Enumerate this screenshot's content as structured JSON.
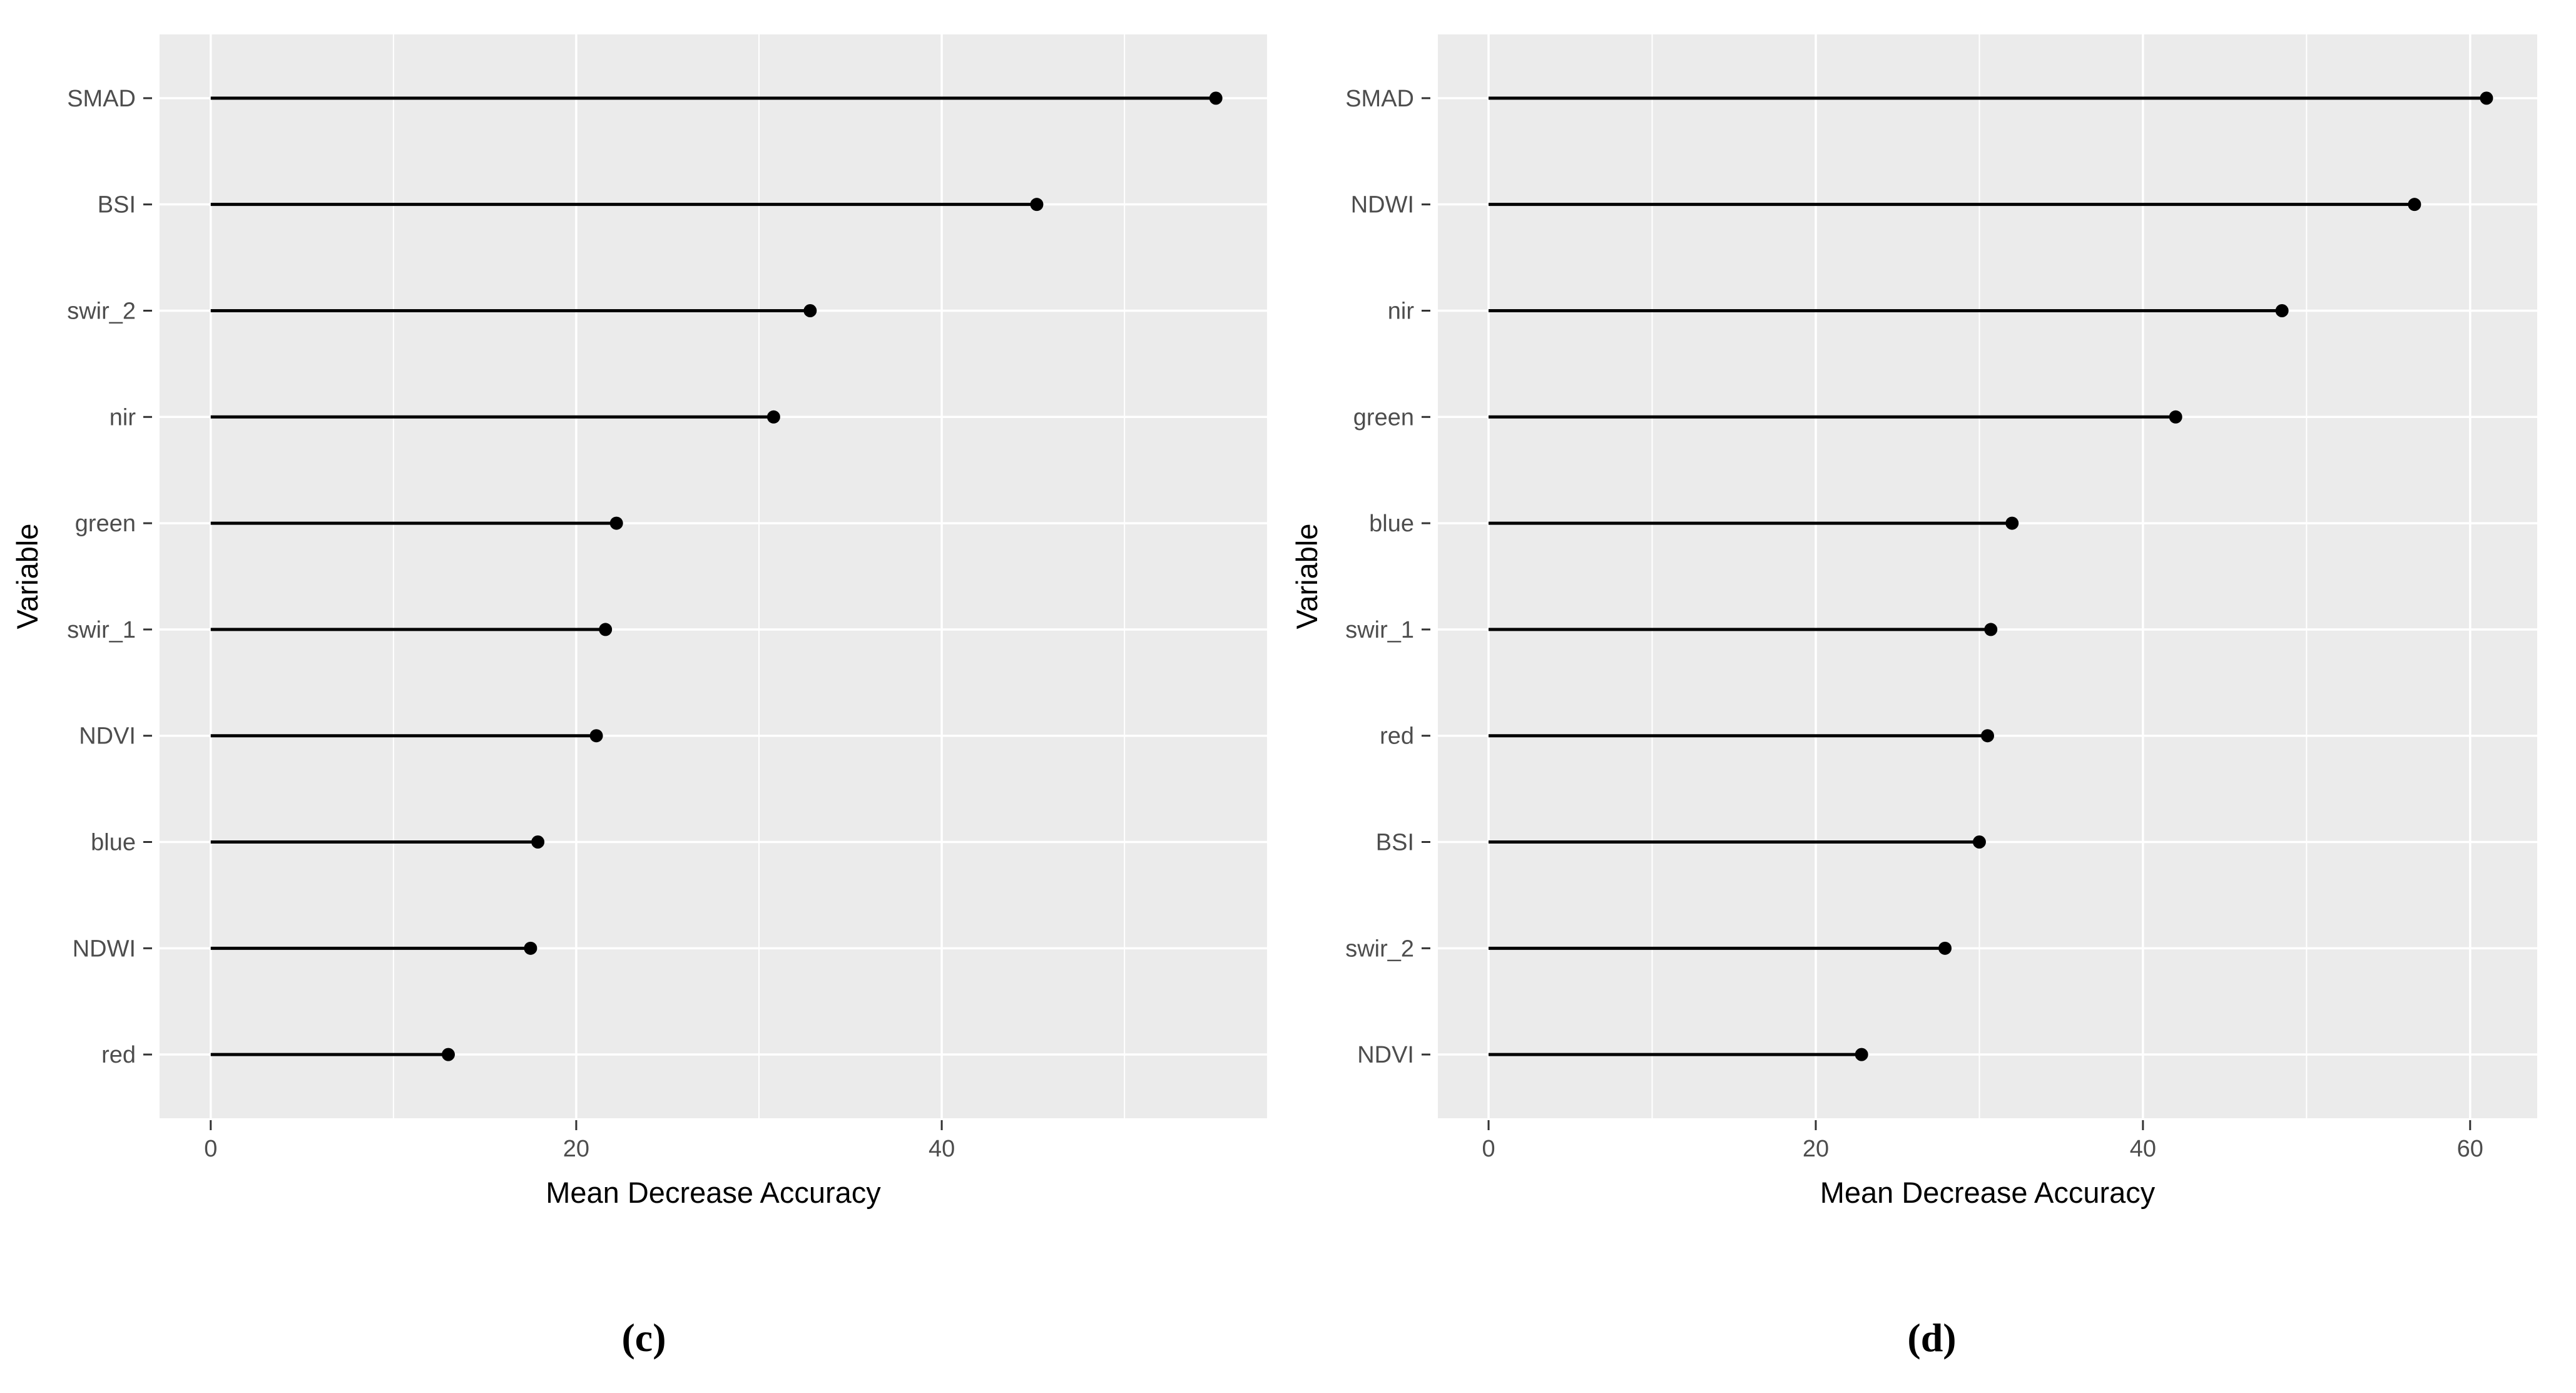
{
  "style": {
    "background": "#ffffff",
    "panel_bg": "#ebebeb",
    "grid_color": "#ffffff",
    "axis_text_color": "#4d4d4d",
    "axis_title_color": "#000000",
    "stem_color": "#000000",
    "point_color": "#000000",
    "tick_mark_color": "#333333"
  },
  "chart_data": [
    {
      "type": "scatter",
      "variant": "lollipop-horizontal",
      "caption": "(c)",
      "title": "",
      "xlabel": "Mean Decrease Accuracy",
      "ylabel": "Variable",
      "categories": [
        "SMAD",
        "BSI",
        "swir_2",
        "nir",
        "green",
        "swir_1",
        "NDVI",
        "blue",
        "NDWI",
        "red"
      ],
      "values": [
        55,
        45.2,
        32.8,
        30.8,
        22.2,
        21.6,
        21.1,
        17.9,
        17.5,
        13
      ],
      "xlim": [
        -2.8,
        57.8
      ],
      "xticks": [
        0,
        20,
        40
      ],
      "xticks_minor": [
        10,
        30,
        50
      ],
      "grid": "on",
      "legend": "none"
    },
    {
      "type": "scatter",
      "variant": "lollipop-horizontal",
      "caption": "(d)",
      "title": "",
      "xlabel": "Mean Decrease Accuracy",
      "ylabel": "Variable",
      "categories": [
        "SMAD",
        "NDWI",
        "nir",
        "green",
        "blue",
        "swir_1",
        "red",
        "BSI",
        "swir_2",
        "NDVI"
      ],
      "values": [
        61,
        56.6,
        48.5,
        42,
        32,
        30.7,
        30.5,
        30,
        27.9,
        22.8
      ],
      "xlim": [
        -3.1,
        64.1
      ],
      "xticks": [
        0,
        20,
        40,
        60
      ],
      "xticks_minor": [
        10,
        30,
        50
      ],
      "grid": "on",
      "legend": "none"
    }
  ]
}
